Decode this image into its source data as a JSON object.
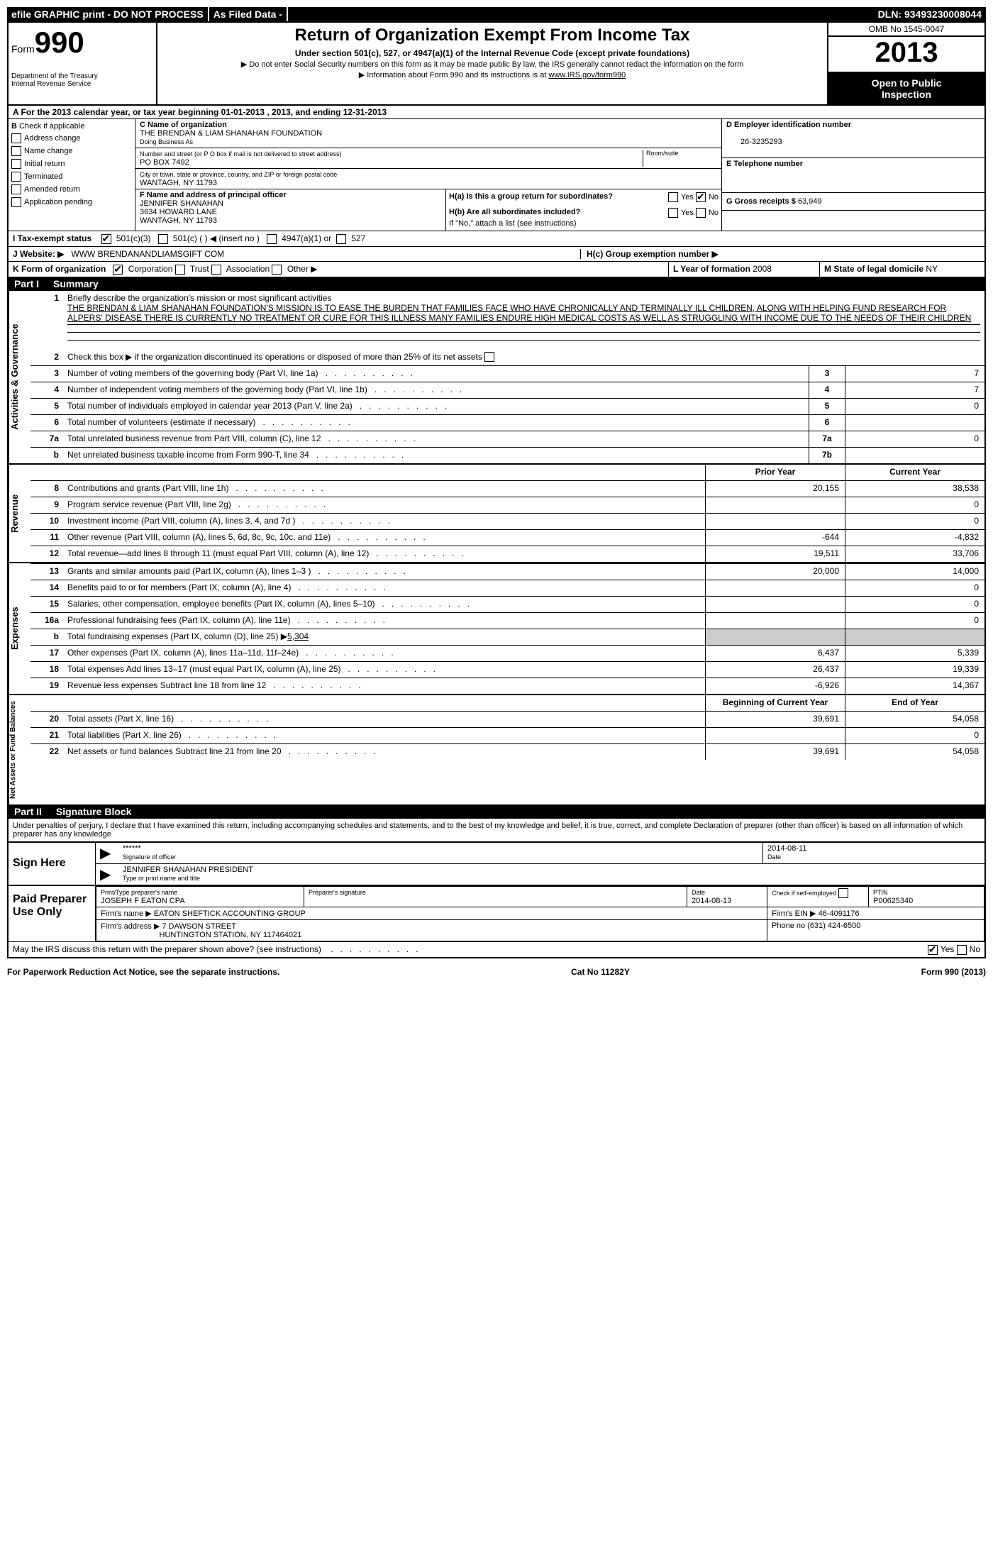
{
  "topbar": {
    "efile": "efile GRAPHIC print - DO NOT PROCESS",
    "asfiled": "As Filed Data -",
    "dln_label": "DLN:",
    "dln": "93493230008044"
  },
  "header": {
    "form_prefix": "Form",
    "form_num": "990",
    "dept1": "Department of the Treasury",
    "dept2": "Internal Revenue Service",
    "title": "Return of Organization Exempt From Income Tax",
    "sub1": "Under section 501(c), 527, or 4947(a)(1) of the Internal Revenue Code (except private foundations)",
    "sub2": "▶ Do not enter Social Security numbers on this form as it may be made public  By law, the IRS generally cannot redact the information on the form",
    "sub3": "▶ Information about Form 990 and its instructions is at",
    "sub3_link": "www.IRS.gov/form990",
    "omb": "OMB No 1545-0047",
    "year": "2013",
    "open1": "Open to Public",
    "open2": "Inspection"
  },
  "row_a": "A For the 2013 calendar year, or tax year beginning 01-01-2013    , 2013, and ending 12-31-2013",
  "section_b": {
    "label": "B",
    "check_label": "Check if applicable",
    "items": [
      "Address change",
      "Name change",
      "Initial return",
      "Terminated",
      "Amended return",
      "Application pending"
    ]
  },
  "section_c": {
    "label": "C Name of organization",
    "name": "THE BRENDAN & LIAM SHANAHAN FOUNDATION",
    "dba_label": "Doing Business As",
    "addr_label": "Number and street (or P O  box if mail is not delivered to street address)",
    "addr": "PO BOX 7492",
    "room_label": "Room/suite",
    "city_label": "City or town, state or province, country, and ZIP or foreign postal code",
    "city": "WANTAGH, NY  11793",
    "f_label": "F    Name and address of principal officer",
    "f_name": "JENNIFER SHANAHAN",
    "f_addr1": "3634 HOWARD LANE",
    "f_addr2": "WANTAGH, NY  11793"
  },
  "section_d": {
    "label": "D Employer identification number",
    "ein": "26-3235293",
    "e_label": "E Telephone number",
    "g_label": "G Gross receipts $",
    "g_val": "63,949"
  },
  "section_h": {
    "ha": "H(a)  Is this a group return for subordinates?",
    "hb": "H(b)  Are all subordinates included?",
    "hb_note": "If \"No,\" attach a list  (see instructions)",
    "hc": "H(c)   Group exemption number ▶",
    "yes": "Yes",
    "no": "No"
  },
  "row_i": {
    "label": "I    Tax-exempt status",
    "o1": "501(c)(3)",
    "o2": "501(c) (   ) ◀ (insert no )",
    "o3": "4947(a)(1) or",
    "o4": "527"
  },
  "row_j": {
    "label": "J    Website: ▶",
    "val": "WWW BRENDANANDLIAMSGIFT COM"
  },
  "row_k": {
    "label": "K Form of organization",
    "o1": "Corporation",
    "o2": "Trust",
    "o3": "Association",
    "o4": "Other ▶",
    "l_label": "L Year of formation",
    "l_val": "2008",
    "m_label": "M State of legal domicile",
    "m_val": "NY"
  },
  "part1": {
    "num": "Part I",
    "title": "Summary"
  },
  "activities": {
    "label": "Activities & Governance",
    "l1": "Briefly describe the organization's mission or most significant activities",
    "l1_text": "THE BRENDAN & LIAM SHANAHAN FOUNDATION'S MISSION IS TO EASE THE BURDEN THAT FAMILIES FACE WHO HAVE CHRONICALLY AND TERMINALLY ILL CHILDREN, ALONG WITH HELPING FUND RESEARCH FOR ALPERS' DISEASE  THERE IS CURRENTLY NO TREATMENT OR CURE FOR THIS ILLNESS  MANY FAMILIES ENDURE HIGH MEDICAL COSTS AS WELL AS STRUGGLING WITH INCOME DUE TO THE NEEDS OF THEIR CHILDREN",
    "l2": "Check this box ▶      if the organization discontinued its operations or disposed of more than 25% of its net assets",
    "l3": "Number of voting members of the governing body (Part VI, line 1a)",
    "l3v": "7",
    "l4": "Number of independent voting members of the governing body (Part VI, line 1b)",
    "l4v": "7",
    "l5": "Total number of individuals employed in calendar year 2013 (Part V, line 2a)",
    "l5v": "0",
    "l6": "Total number of volunteers (estimate if necessary)",
    "l7a": "Total unrelated business revenue from Part VIII, column (C), line 12",
    "l7av": "0",
    "l7b": "Net unrelated business taxable income from Form 990-T, line 34"
  },
  "col_headers": {
    "prior": "Prior Year",
    "current": "Current Year",
    "boy": "Beginning of Current Year",
    "eoy": "End of Year"
  },
  "revenue": {
    "label": "Revenue",
    "rows": [
      {
        "n": "8",
        "t": "Contributions and grants (Part VIII, line 1h)",
        "p": "20,155",
        "c": "38,538"
      },
      {
        "n": "9",
        "t": "Program service revenue (Part VIII, line 2g)",
        "p": "",
        "c": "0"
      },
      {
        "n": "10",
        "t": "Investment income (Part VIII, column (A), lines 3, 4, and 7d )",
        "p": "",
        "c": "0"
      },
      {
        "n": "11",
        "t": "Other revenue (Part VIII, column (A), lines 5, 6d, 8c, 9c, 10c, and 11e)",
        "p": "-644",
        "c": "-4,832"
      },
      {
        "n": "12",
        "t": "Total revenue—add lines 8 through 11 (must equal Part VIII, column (A), line 12)",
        "p": "19,511",
        "c": "33,706"
      }
    ]
  },
  "expenses": {
    "label": "Expenses",
    "rows": [
      {
        "n": "13",
        "t": "Grants and similar amounts paid (Part IX, column (A), lines 1–3 )",
        "p": "20,000",
        "c": "14,000"
      },
      {
        "n": "14",
        "t": "Benefits paid to or for members (Part IX, column (A), line 4)",
        "p": "",
        "c": "0"
      },
      {
        "n": "15",
        "t": "Salaries, other compensation, employee benefits (Part IX, column (A), lines 5–10)",
        "p": "",
        "c": "0"
      },
      {
        "n": "16a",
        "t": "Professional fundraising fees (Part IX, column (A), line 11e)",
        "p": "",
        "c": "0"
      },
      {
        "n": "b",
        "t": "Total fundraising expenses (Part IX, column (D), line 25) ▶",
        "extra": "5,304",
        "grey": true
      },
      {
        "n": "17",
        "t": "Other expenses (Part IX, column (A), lines 11a–11d, 11f–24e)",
        "p": "6,437",
        "c": "5,339"
      },
      {
        "n": "18",
        "t": "Total expenses  Add lines 13–17 (must equal Part IX, column (A), line 25)",
        "p": "26,437",
        "c": "19,339"
      },
      {
        "n": "19",
        "t": "Revenue less expenses  Subtract line 18 from line 12",
        "p": "-6,926",
        "c": "14,367"
      }
    ]
  },
  "netassets": {
    "label": "Net Assets or Fund Balances",
    "rows": [
      {
        "n": "20",
        "t": "Total assets (Part X, line 16)",
        "p": "39,691",
        "c": "54,058"
      },
      {
        "n": "21",
        "t": "Total liabilities (Part X, line 26)",
        "p": "",
        "c": "0"
      },
      {
        "n": "22",
        "t": "Net assets or fund balances  Subtract line 21 from line 20",
        "p": "39,691",
        "c": "54,058"
      }
    ]
  },
  "part2": {
    "num": "Part II",
    "title": "Signature Block",
    "perjury": "Under penalties of perjury, I declare that I have examined this return, including accompanying schedules and statements, and to the best of my knowledge and belief, it is true, correct, and complete  Declaration of preparer (other than officer) is based on all information of which preparer has any knowledge"
  },
  "sign": {
    "here": "Sign Here",
    "stars": "******",
    "sig_label": "Signature of officer",
    "date": "2014-08-11",
    "date_label": "Date",
    "name": "JENNIFER SHANAHAN PRESIDENT",
    "name_label": "Type or print name and title"
  },
  "preparer": {
    "left": "Paid Preparer Use Only",
    "h1": "Print/Type preparer's name",
    "v1": "JOSEPH F EATON CPA",
    "h2": "Preparer's signature",
    "h3": "Date",
    "v3": "2014-08-13",
    "h4": "Check        if self-employed",
    "h5": "PTIN",
    "v5": "P00625340",
    "firm_name_l": "Firm's name      ▶",
    "firm_name": "EATON SHEFTICK ACCOUNTING GROUP",
    "firm_ein_l": "Firm's EIN ▶",
    "firm_ein": "46-4091176",
    "firm_addr_l": "Firm's address ▶",
    "firm_addr1": "7 DAWSON STREET",
    "firm_addr2": "HUNTINGTON STATION, NY  117464021",
    "phone_l": "Phone no",
    "phone": "(631) 424-6500"
  },
  "discuss": "May the IRS discuss this return with the preparer shown above? (see instructions)",
  "footer": {
    "left": "For Paperwork Reduction Act Notice, see the separate instructions.",
    "mid": "Cat No 11282Y",
    "right": "Form 990 (2013)"
  }
}
